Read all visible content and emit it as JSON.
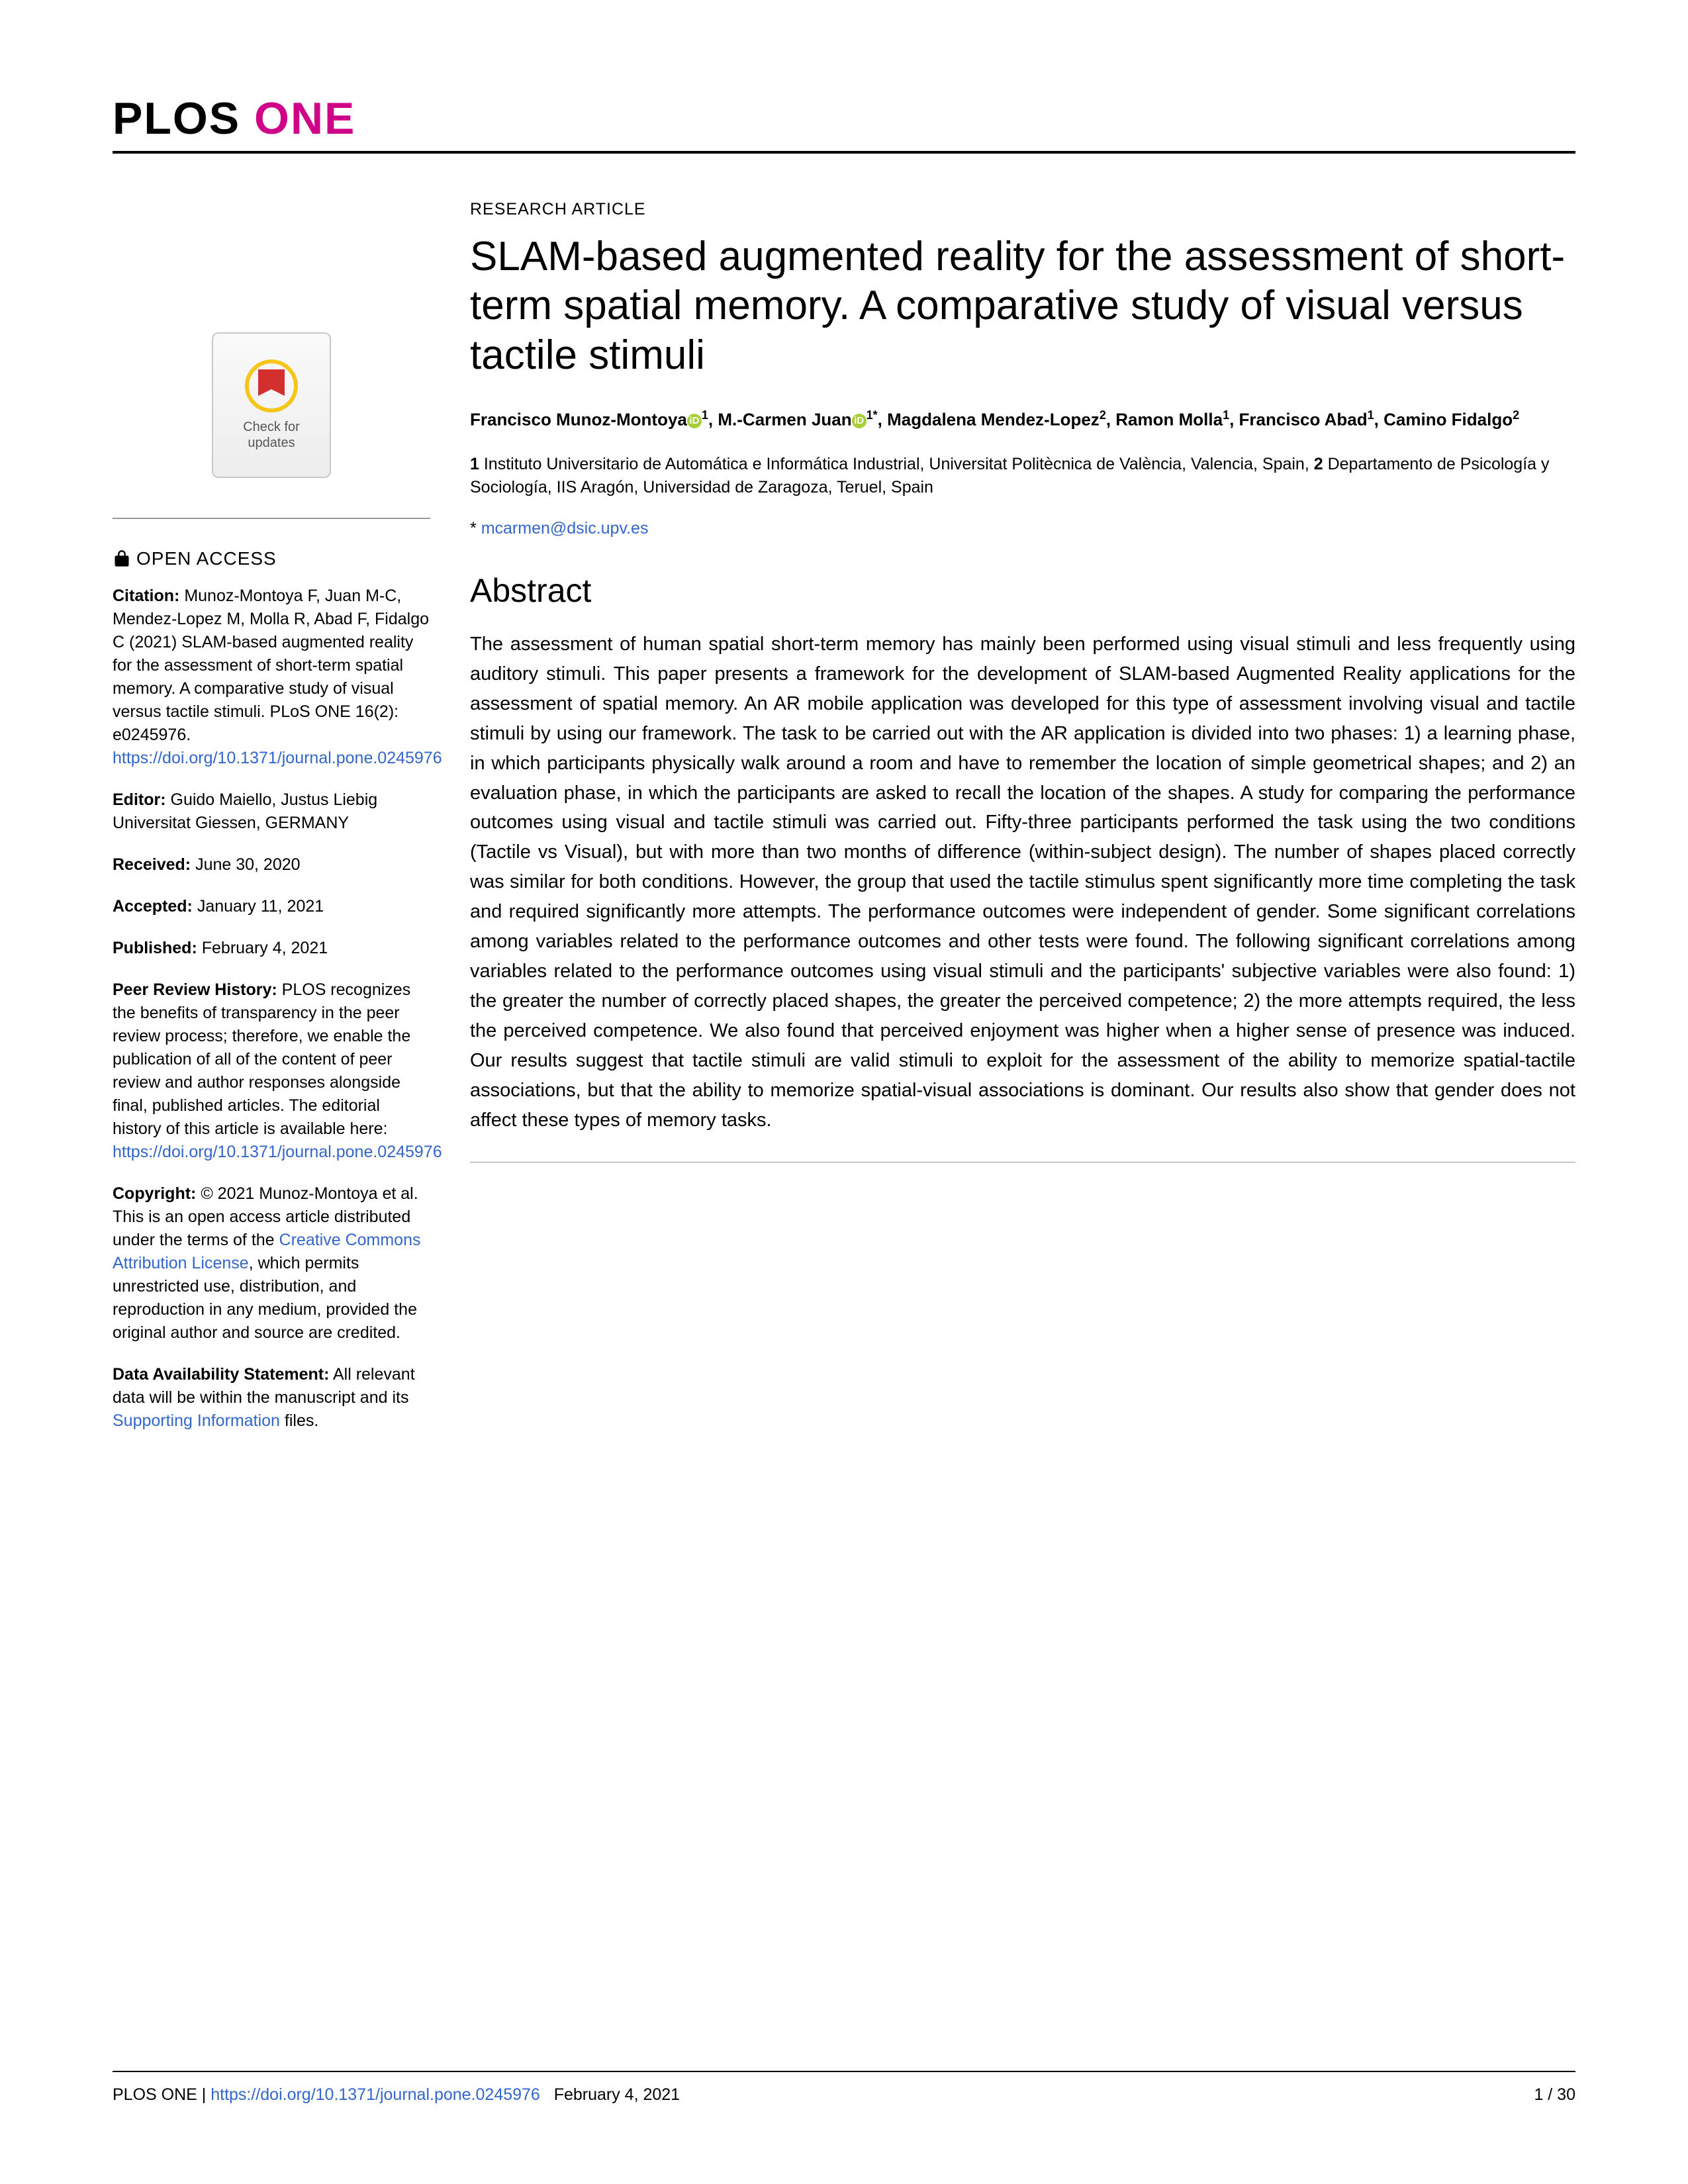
{
  "journal": {
    "name_part1": "PLOS",
    "name_part2": "ONE"
  },
  "updates_widget": {
    "line1": "Check for",
    "line2": "updates"
  },
  "open_access_label": "OPEN ACCESS",
  "citation": {
    "label": "Citation:",
    "text": " Munoz-Montoya F, Juan M-C, Mendez-Lopez M, Molla R, Abad F, Fidalgo C (2021) SLAM-based augmented reality for the assessment of short-term spatial memory. A comparative study of visual versus tactile stimuli. PLoS ONE 16(2): e0245976. ",
    "link": "https://doi.org/10.1371/journal.pone.0245976"
  },
  "editor": {
    "label": "Editor:",
    "text": " Guido Maiello, Justus Liebig Universitat Giessen, GERMANY"
  },
  "received": {
    "label": "Received:",
    "text": " June 30, 2020"
  },
  "accepted": {
    "label": "Accepted:",
    "text": " January 11, 2021"
  },
  "published": {
    "label": "Published:",
    "text": " February 4, 2021"
  },
  "peer_review": {
    "label": "Peer Review History:",
    "text": " PLOS recognizes the benefits of transparency in the peer review process; therefore, we enable the publication of all of the content of peer review and author responses alongside final, published articles. The editorial history of this article is available here: ",
    "link": "https://doi.org/10.1371/journal.pone.0245976"
  },
  "copyright": {
    "label": "Copyright:",
    "text1": " © 2021 Munoz-Montoya et al. This is an open access article distributed under the terms of the ",
    "link": "Creative Commons Attribution License",
    "text2": ", which permits unrestricted use, distribution, and reproduction in any medium, provided the original author and source are credited."
  },
  "data_availability": {
    "label": "Data Availability Statement:",
    "text1": " All relevant data will be within the manuscript and its ",
    "link": "Supporting Information",
    "text2": " files."
  },
  "article": {
    "type": "RESEARCH ARTICLE",
    "title": "SLAM-based augmented reality for the assessment of short-term spatial memory. A comparative study of visual versus tactile stimuli",
    "authors_html": [
      {
        "name": "Francisco Munoz-Montoya",
        "orcid": true,
        "sup": "1",
        "sep": ", "
      },
      {
        "name": "M.-Carmen Juan",
        "orcid": true,
        "sup": "1*",
        "sep": ", "
      },
      {
        "name": "Magdalena Mendez-Lopez",
        "orcid": false,
        "sup": "2",
        "sep": ", "
      },
      {
        "name": "Ramon Molla",
        "orcid": false,
        "sup": "1",
        "sep": ", "
      },
      {
        "name": "Francisco Abad",
        "orcid": false,
        "sup": "1",
        "sep": ", "
      },
      {
        "name": "Camino Fidalgo",
        "orcid": false,
        "sup": "2",
        "sep": ""
      }
    ],
    "affiliations": "1 Instituto Universitario de Automática e Informática Industrial, Universitat Politècnica de València, Valencia, Spain, 2 Departamento de Psicología y Sociología, IIS Aragón, Universidad de Zaragoza, Teruel, Spain",
    "corresponding_prefix": "* ",
    "corresponding_email": "mcarmen@dsic.upv.es",
    "abstract_heading": "Abstract",
    "abstract": "The assessment of human spatial short-term memory has mainly been performed using visual stimuli and less frequently using auditory stimuli. This paper presents a framework for the development of SLAM-based Augmented Reality applications for the assessment of spatial memory. An AR mobile application was developed for this type of assessment involving visual and tactile stimuli by using our framework. The task to be carried out with the AR application is divided into two phases: 1) a learning phase, in which participants physically walk around a room and have to remember the location of simple geometrical shapes; and 2) an evaluation phase, in which the participants are asked to recall the location of the shapes. A study for comparing the performance outcomes using visual and tactile stimuli was carried out. Fifty-three participants performed the task using the two conditions (Tactile vs Visual), but with more than two months of difference (within-subject design). The number of shapes placed correctly was similar for both conditions. However, the group that used the tactile stimulus spent significantly more time completing the task and required significantly more attempts. The performance outcomes were independent of gender. Some significant correlations among variables related to the performance outcomes and other tests were found. The following significant correlations among variables related to the performance outcomes using visual stimuli and the participants' subjective variables were also found: 1) the greater the number of correctly placed shapes, the greater the perceived competence; 2) the more attempts required, the less the perceived competence. We also found that perceived enjoyment was higher when a higher sense of presence was induced. Our results suggest that tactile stimuli are valid stimuli to exploit for the assessment of the ability to memorize spatial-tactile associations, but that the ability to memorize spatial-visual associations is dominant. Our results also show that gender does not affect these types of memory tasks."
  },
  "footer": {
    "journal": "PLOS ONE | ",
    "doi": "https://doi.org/10.1371/journal.pone.0245976",
    "date": "February 4, 2021",
    "page": "1 / 30"
  }
}
